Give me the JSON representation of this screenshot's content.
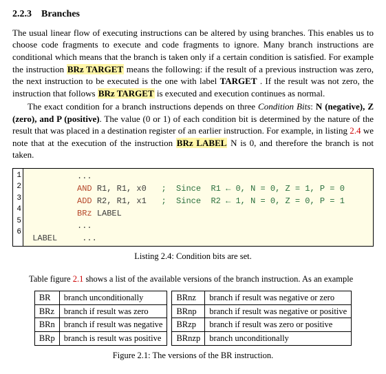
{
  "section": {
    "number": "2.2.3",
    "title": "Branches"
  },
  "para1": {
    "t1": "The usual linear flow of executing instructions can be altered by using branches. This enables us to choose code fragments to execute and code fragments to ignore. Many branch instructions are conditional which means that the branch is taken only if a certain condition is satisfied. For example the instruction ",
    "hl1": "BRz TARGET",
    "t2": " means the following: if the result of a previous instruction was zero, the next instruction to be executed is the one with label ",
    "b1": "TARGET",
    "t3": ". If the result was not zero, the instruction that follows ",
    "hl2": "BRz TARGET",
    "t4": " is executed and execution continues as normal."
  },
  "para2": {
    "t1": "The exact condition for a branch instructions depends on three ",
    "i1": "Condition Bits",
    "t2": ": ",
    "b1": "N (negative), Z (zero), and P (positive)",
    "t3": ". The value (0 or 1) of each condition bit is determined by the nature of the result that was placed in a destination register of an earlier instruction. For example, in listing ",
    "ref": "2.4",
    "t4": " we note that at the execution of the instruction ",
    "hl1": "BRz LABEL",
    "t5": " N is 0, and therefore the branch is not taken."
  },
  "listing": {
    "caption": "Listing 2.4: Condition bits are set.",
    "linenumbers": [
      "1",
      "2",
      "3",
      "4",
      "5",
      "6"
    ],
    "lines": [
      {
        "pad": "          ",
        "kw": "",
        "rest": "...",
        "com": ""
      },
      {
        "pad": "          ",
        "kw": "AND",
        "rest": " R1, R1, x0   ",
        "com": ";  Since  R1 ← 0, N = 0, Z = 1, P = 0"
      },
      {
        "pad": "          ",
        "kw": "ADD",
        "rest": " R2, R1, x1   ",
        "com": ";  Since  R2 ← 1, N = 0, Z = 0, P = 1"
      },
      {
        "pad": "          ",
        "kw": "BRz",
        "rest": " LABEL",
        "com": ""
      },
      {
        "pad": "          ",
        "kw": "",
        "rest": "...",
        "com": ""
      },
      {
        "pad": " ",
        "kw": "",
        "rest": "LABEL     ...",
        "com": ""
      }
    ]
  },
  "tableintro": {
    "t1": "Table figure ",
    "ref": "2.1",
    "t2": " shows a list of the available versions of the branch instruction. As an example"
  },
  "brtable": {
    "left": [
      {
        "mn": "BR",
        "desc": "branch unconditionally"
      },
      {
        "mn": "BRz",
        "desc": "branch if result was zero"
      },
      {
        "mn": "BRn",
        "desc": "branch if result was negative"
      },
      {
        "mn": "BRp",
        "desc": "branch is result was positive"
      }
    ],
    "right": [
      {
        "mn": "BRnz",
        "desc": "branch if result was negative or zero"
      },
      {
        "mn": "BRnp",
        "desc": "branch if result was negative or positive"
      },
      {
        "mn": "BRzp",
        "desc": "branch if result was zero or positive"
      },
      {
        "mn": "BRnzp",
        "desc": "branch unconditionally"
      }
    ],
    "caption": "Figure 2.1: The versions of the BR instruction."
  },
  "style": {
    "highlight_bg": "#fff6a8",
    "listing_bg": "#fffde6",
    "kw_color": "#b5472a",
    "comment_color": "#2a6f3d",
    "ref_color": "#cc0000"
  }
}
